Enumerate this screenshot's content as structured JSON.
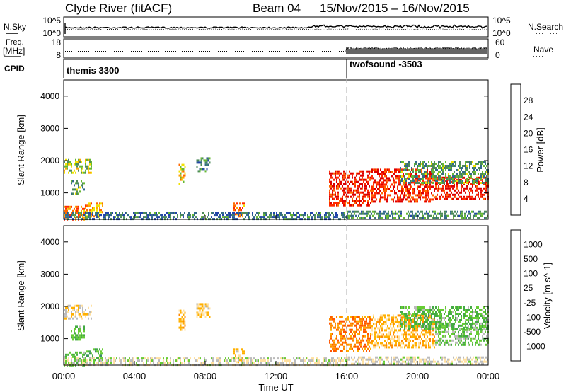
{
  "header": {
    "station": "Clyde River (fitACF)",
    "beam": "Beam 04",
    "dates": "15/Nov/2015 – 16/Nov/2015"
  },
  "param_panels": {
    "nsky_label": "N.Sky",
    "nsearch_label": "N.Search",
    "noise_ticks_left": [
      "10^5",
      "10^0"
    ],
    "noise_ticks_right": [
      "10^5",
      "10^0"
    ],
    "freq_label_line1": "Freq.",
    "freq_label_line2": "[MHz]",
    "freq_ticks": [
      "18",
      "8"
    ],
    "nave_label": "Nave",
    "nave_ticks": [
      "60",
      "0"
    ],
    "cpid_label": "CPID",
    "cpid_segments": [
      {
        "name": "themis 3300",
        "start_hour": 0
      },
      {
        "name": "twofsound -3503",
        "start_hour": 16
      }
    ]
  },
  "time_axis": {
    "label": "Time UT",
    "ticks": [
      "00:00",
      "04:00",
      "08:00",
      "12:00",
      "16:00",
      "20:00",
      "00:00"
    ],
    "range_hours": [
      0,
      24
    ],
    "marker_hour": 16
  },
  "colors": {
    "power": [
      "#0000ff",
      "#2244aa",
      "#336a8a",
      "#4d8a5a",
      "#66b833",
      "#f2e200",
      "#ffa500",
      "#ff6a00",
      "#ff2a00",
      "#dd0000"
    ],
    "velocity": [
      "#ff0000",
      "#ff5500",
      "#ff8a00",
      "#ffb000",
      "#ffe0a0",
      "#bbbbbb",
      "#66cc33",
      "#44aa44",
      "#3c8a6a",
      "#2a4ea0",
      "#0000ff"
    ]
  },
  "chart_data": [
    {
      "type": "heatmap",
      "name": "power",
      "ylabel": "Slant Range [km]",
      "xlabel": "Time UT",
      "xlim_hours": [
        0,
        24
      ],
      "ylim_km": [
        180,
        4500
      ],
      "yticks": [
        "1000",
        "2000",
        "3000",
        "4000"
      ],
      "colorbar": {
        "label": "Power [dB]",
        "ticks": [
          "4",
          "8",
          "12",
          "16",
          "20",
          "24",
          "28"
        ],
        "range": [
          0,
          30
        ]
      },
      "regions": [
        {
          "t": [
            0.0,
            1.6
          ],
          "r": [
            1600,
            2050
          ],
          "level": 14
        },
        {
          "t": [
            0.0,
            1.2
          ],
          "r": [
            200,
            600
          ],
          "level": 22
        },
        {
          "t": [
            0.4,
            1.2
          ],
          "r": [
            1000,
            1400
          ],
          "level": 12
        },
        {
          "t": [
            1.2,
            2.2
          ],
          "r": [
            300,
            700
          ],
          "level": 20
        },
        {
          "t": [
            6.5,
            6.9
          ],
          "r": [
            1300,
            1900
          ],
          "level": 18
        },
        {
          "t": [
            7.5,
            8.3
          ],
          "r": [
            1700,
            2100
          ],
          "level": 9
        },
        {
          "t": [
            9.6,
            10.2
          ],
          "r": [
            300,
            700
          ],
          "level": 22
        },
        {
          "t": [
            0.0,
            16.0
          ],
          "r": [
            200,
            420
          ],
          "level": 8
        },
        {
          "t": [
            15.0,
            17.4
          ],
          "r": [
            600,
            1700
          ],
          "level": 27
        },
        {
          "t": [
            17.4,
            21.0
          ],
          "r": [
            700,
            1750
          ],
          "level": 26
        },
        {
          "t": [
            21.0,
            24.0
          ],
          "r": [
            800,
            1500
          ],
          "level": 28
        },
        {
          "t": [
            19.0,
            24.0
          ],
          "r": [
            1300,
            2000
          ],
          "level": 11
        },
        {
          "t": [
            16.0,
            24.0
          ],
          "r": [
            200,
            450
          ],
          "level": 10
        }
      ]
    },
    {
      "type": "heatmap",
      "name": "velocity",
      "ylabel": "Slant Range [km]",
      "xlabel": "Time UT",
      "xlim_hours": [
        0,
        24
      ],
      "ylim_km": [
        180,
        4500
      ],
      "yticks": [
        "1000",
        "2000",
        "3000",
        "4000"
      ],
      "colorbar": {
        "label": "Velocity [m s^-1]",
        "ticks": [
          "-1000",
          "-500",
          "-100",
          "-25",
          "25",
          "100",
          "500",
          "1000"
        ],
        "range": [
          -1200,
          1200
        ]
      },
      "regions": [
        {
          "t": [
            0.0,
            1.6
          ],
          "r": [
            1600,
            2050
          ],
          "level": -200
        },
        {
          "t": [
            0.0,
            1.2
          ],
          "r": [
            200,
            600
          ],
          "level": 300
        },
        {
          "t": [
            0.4,
            1.2
          ],
          "r": [
            1000,
            1400
          ],
          "level": 300
        },
        {
          "t": [
            1.2,
            2.2
          ],
          "r": [
            300,
            700
          ],
          "level": 400
        },
        {
          "t": [
            6.5,
            6.9
          ],
          "r": [
            1300,
            1900
          ],
          "level": -400
        },
        {
          "t": [
            7.5,
            8.3
          ],
          "r": [
            1700,
            2100
          ],
          "level": -300
        },
        {
          "t": [
            9.6,
            10.2
          ],
          "r": [
            300,
            700
          ],
          "level": -300
        },
        {
          "t": [
            0.0,
            16.0
          ],
          "r": [
            200,
            420
          ],
          "level": -60
        },
        {
          "t": [
            15.0,
            17.4
          ],
          "r": [
            600,
            1700
          ],
          "level": -700
        },
        {
          "t": [
            17.4,
            21.0
          ],
          "r": [
            700,
            1750
          ],
          "level": -400
        },
        {
          "t": [
            21.0,
            24.0
          ],
          "r": [
            800,
            1500
          ],
          "level": 200
        },
        {
          "t": [
            19.0,
            24.0
          ],
          "r": [
            1300,
            2000
          ],
          "level": 300
        },
        {
          "t": [
            16.0,
            24.0
          ],
          "r": [
            200,
            450
          ],
          "level": -80
        }
      ]
    }
  ]
}
